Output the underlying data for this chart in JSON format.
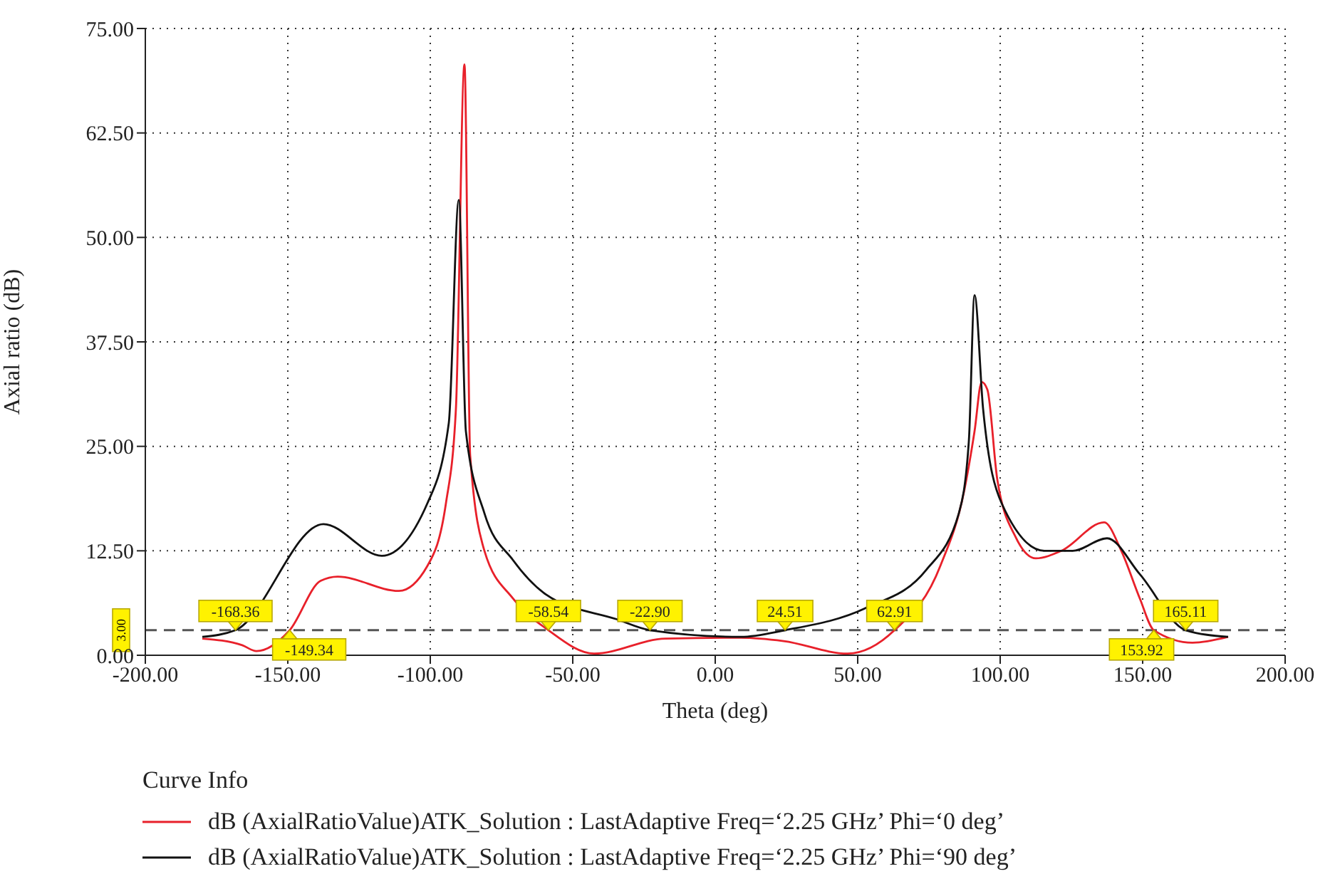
{
  "chart_data": {
    "type": "line",
    "xlabel": "Theta (deg)",
    "ylabel": "Axial ratio (dB)",
    "legend_title": "Curve Info",
    "legend": "bottom",
    "grid": true,
    "line_style": "solid",
    "marker": "none",
    "xlim": [
      -200,
      200
    ],
    "xticks": [
      {
        "value": -200,
        "label": "-200.00"
      },
      {
        "value": -150,
        "label": "-150.00"
      },
      {
        "value": -100,
        "label": "-100.00"
      },
      {
        "value": -50,
        "label": "-50.00"
      },
      {
        "value": 0,
        "label": "0.00"
      },
      {
        "value": 50,
        "label": "50.00"
      },
      {
        "value": 100,
        "label": "100.00"
      },
      {
        "value": 150,
        "label": "150.00"
      },
      {
        "value": 200,
        "label": "200.00"
      }
    ],
    "ylim": [
      0,
      75
    ],
    "yticks": [
      {
        "value": 0,
        "label": "0.00"
      },
      {
        "value": 12.5,
        "label": "12.50"
      },
      {
        "value": 25,
        "label": "25.00"
      },
      {
        "value": 37.5,
        "label": "37.50"
      },
      {
        "value": 50,
        "label": "50.00"
      },
      {
        "value": 62.5,
        "label": "62.50"
      },
      {
        "value": 75,
        "label": "75.00"
      }
    ],
    "ref_lines": [
      {
        "axis": "y",
        "value": 3,
        "label": "3.00",
        "line_style": "dashed",
        "color": "#555555"
      }
    ],
    "annotations": [
      {
        "text": "-168.36",
        "x": -168.36,
        "y": 3
      },
      {
        "text": "-149.34",
        "x": -149.34,
        "y": 3
      },
      {
        "text": "-58.54",
        "x": -58.54,
        "y": 3
      },
      {
        "text": "-22.90",
        "x": -22.9,
        "y": 3
      },
      {
        "text": "24.51",
        "x": 24.51,
        "y": 3
      },
      {
        "text": "62.91",
        "x": 62.91,
        "y": 3
      },
      {
        "text": "153.92",
        "x": 153.92,
        "y": 3
      },
      {
        "text": "165.11",
        "x": 165.11,
        "y": 3
      }
    ],
    "series": [
      {
        "name": "dB (AxialRatioValue)ATK_Solution : LastAdaptive Freq=‘2.25 GHz’ Phi=‘0 deg’",
        "color": "#e8202a",
        "x": [
          -180,
          -166,
          -161,
          -149.34,
          -138.5,
          -132.5,
          -111,
          -101,
          -94.5,
          -91,
          -88,
          -86,
          -81,
          -71,
          -58.54,
          -42.5,
          -17.5,
          9,
          24,
          46.5,
          62.91,
          79,
          87.5,
          91,
          93.5,
          95.5,
          99,
          105.5,
          112.5,
          121.5,
          136.5,
          142.5,
          149,
          153.92,
          167.5,
          180
        ],
        "values": [
          2.0,
          1.2,
          0.5,
          3.0,
          8.9,
          9.4,
          7.7,
          10.7,
          18.2,
          29.5,
          70.7,
          23.9,
          12.5,
          6.8,
          3.0,
          0.2,
          2.0,
          2.1,
          1.7,
          0.2,
          3.0,
          10.7,
          19.9,
          26.8,
          32.7,
          31.8,
          21.0,
          14.1,
          11.6,
          12.5,
          15.9,
          12.5,
          6.8,
          3.0,
          1.5,
          2.2
        ]
      },
      {
        "name": "dB (AxialRatioValue)ATK_Solution : LastAdaptive Freq=‘2.25 GHz’ Phi=‘90 deg’",
        "color": "#111111",
        "x": [
          -180,
          -168.36,
          -137.5,
          -117,
          -101,
          -93.5,
          -90,
          -87.5,
          -81,
          -71,
          -59.5,
          -34.5,
          -22.9,
          9,
          24.51,
          52.5,
          74,
          85.5,
          89,
          91,
          94,
          100.5,
          115.5,
          125.5,
          137.5,
          149,
          165.11,
          180
        ],
        "values": [
          2.2,
          3.0,
          15.7,
          11.9,
          18.2,
          27.8,
          54.5,
          26.8,
          17.0,
          11.4,
          7.3,
          4.3,
          3.0,
          2.2,
          3.0,
          5.6,
          10.2,
          17.0,
          25.6,
          43.1,
          29.5,
          18.2,
          12.5,
          12.5,
          14.0,
          9.7,
          3.0,
          2.2
        ]
      }
    ]
  }
}
